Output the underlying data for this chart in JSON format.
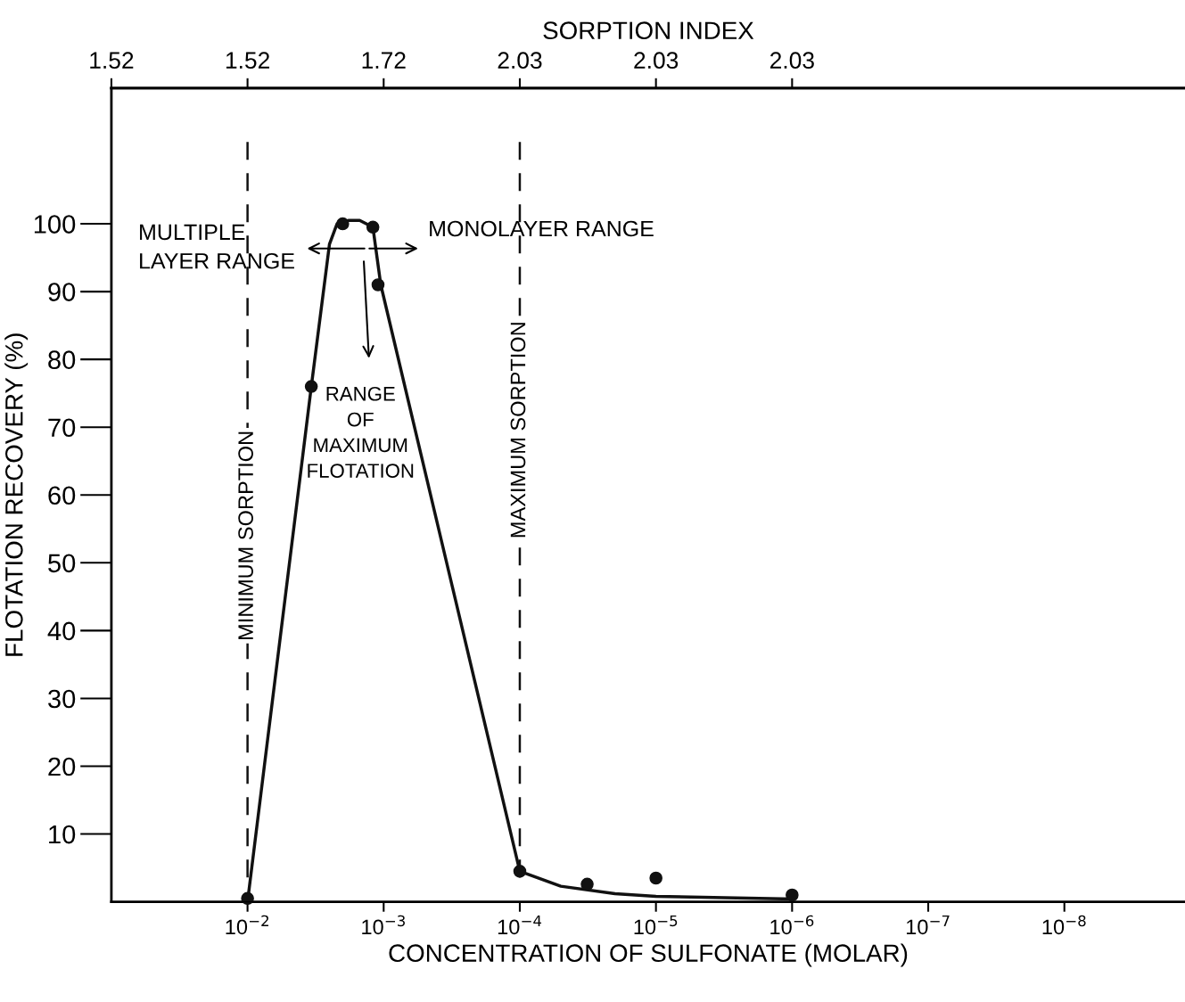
{
  "chart_data": {
    "type": "line",
    "xlabel": "CONCENTRATION OF SULFONATE (MOLAR)",
    "ylabel": "FLOTATION RECOVERY (%)",
    "x2label": "SORPTION INDEX",
    "log": "x",
    "xlim": [
      0.1,
      1.3e-09
    ],
    "ylim": [
      0,
      120
    ],
    "xticks": [
      {
        "value": 0.01,
        "label": "10$^{−2}$"
      },
      {
        "value": 0.001,
        "label": "10$^{−3}$"
      },
      {
        "value": 0.0001,
        "label": "10$^{−4}$"
      },
      {
        "value": 1e-05,
        "label": "10$^{−5}$"
      },
      {
        "value": 1e-06,
        "label": "10$^{−6}$"
      },
      {
        "value": 1e-07,
        "label": "10$^{−7}$"
      },
      {
        "value": 1e-08,
        "label": "10$^{−8}$"
      }
    ],
    "yticks": [
      10,
      20,
      30,
      40,
      50,
      60,
      70,
      80,
      90,
      100
    ],
    "grid": false,
    "legend": false,
    "series": [
      {
        "color": "#111111",
        "marker": "none",
        "line_style": "solid",
        "x": [
          0.01,
          0.0034,
          0.0025,
          0.0022,
          0.0018,
          0.0015,
          0.0012,
          0.00105,
          0.0001,
          5e-05,
          2e-05,
          1e-05,
          1e-06
        ],
        "values": [
          0,
          76,
          97,
          100,
          100.5,
          100.5,
          99.5,
          91,
          4.5,
          2.3,
          1.2,
          0.8,
          0.4
        ]
      },
      {
        "type": "scatter",
        "color": "#111111",
        "marker": "circle",
        "x": [
          0.01,
          0.0034,
          0.002,
          0.0012,
          0.0011,
          0.0001,
          3.2e-05,
          1e-05,
          1e-06
        ],
        "values": [
          0.5,
          76,
          100,
          99.5,
          91,
          4.5,
          2.6,
          3.5,
          1
        ]
      }
    ],
    "ref_lines": [
      {
        "axis": "x",
        "value": 0.01,
        "label": "MINIMUM SORPTION",
        "line_style": "dashed",
        "color": "#111111"
      },
      {
        "axis": "x",
        "value": 0.0001,
        "label": "MAXIMUM SORPTION",
        "line_style": "dashed",
        "color": "#111111"
      }
    ],
    "annotations": [
      "MULTIPLE\nLAYER RANGE",
      "MONOLAYER RANGE",
      "RANGE\nOF\nMAXIMUM\nFLOTATION",
      "1.52",
      "1.52",
      "1.72",
      "2.03",
      "2.03",
      "2.03"
    ]
  }
}
